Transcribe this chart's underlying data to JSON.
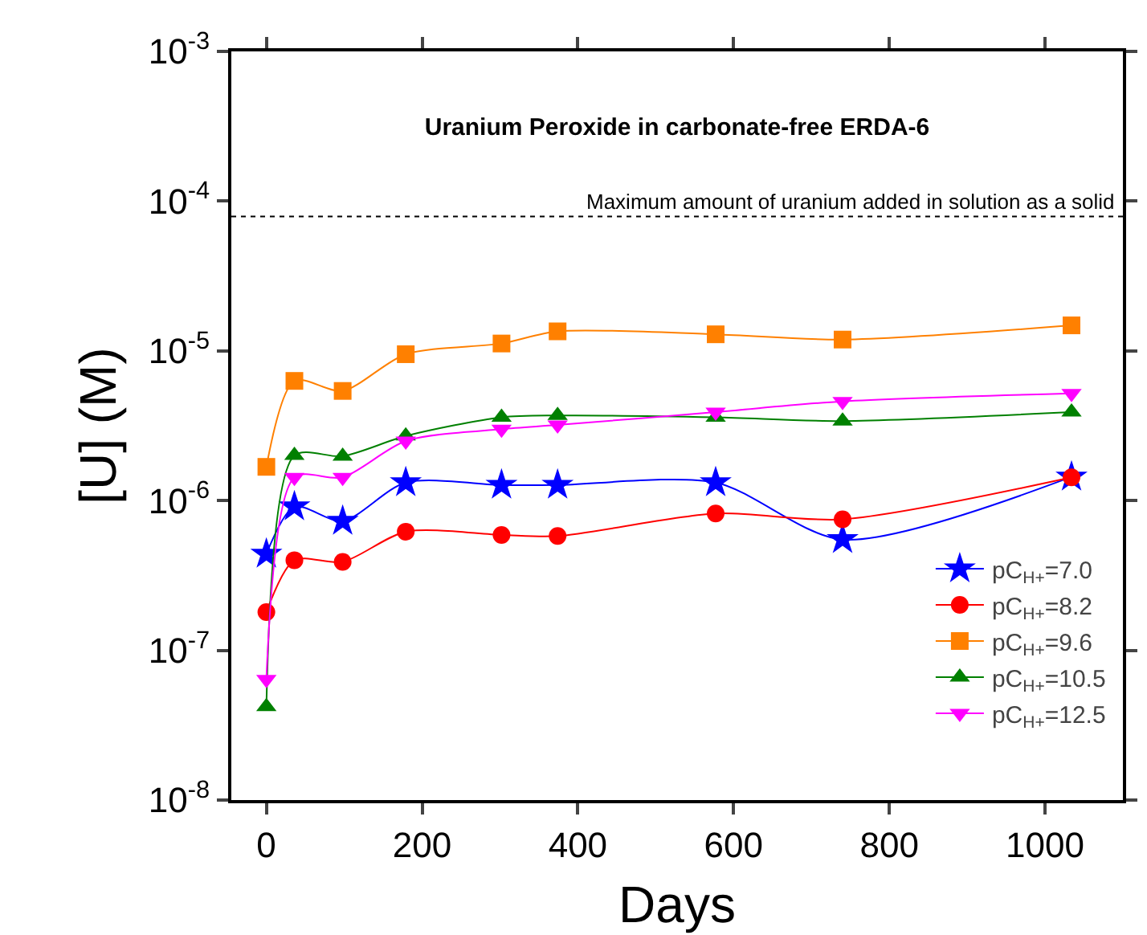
{
  "chart_data": {
    "type": "line",
    "title": "Uranium Peroxide in carbonate-free ERDA-6",
    "xlabel": "Days",
    "ylabel": "[U] (M)",
    "log": "y",
    "xlim": [
      -45,
      1100
    ],
    "xticks": [
      0,
      200,
      400,
      600,
      800,
      1000
    ],
    "ylim": [
      1e-08,
      0.001
    ],
    "yticks": [
      {
        "value": 1e-08,
        "label": "10$^{-8}$"
      },
      {
        "value": 1e-07,
        "label": "10$^{-7}$"
      },
      {
        "value": 1e-06,
        "label": "10$^{-6}$"
      },
      {
        "value": 1e-05,
        "label": "10$^{-5}$"
      },
      {
        "value": 0.0001,
        "label": "10$^{-4}$"
      },
      {
        "value": 0.001,
        "label": "10$^{-3}$"
      }
    ],
    "grid": false,
    "legend": "bottom right",
    "line_style": "solid",
    "x": [
      0,
      36,
      98,
      179,
      302,
      374,
      577,
      740,
      1034
    ],
    "series": [
      {
        "name": "pC$_{H+}$=7.0",
        "color": "#0000ff",
        "marker": "star",
        "values": [
          4.4e-07,
          9.1e-07,
          7.3e-07,
          1.32e-06,
          1.27e-06,
          1.27e-06,
          1.32e-06,
          5.5e-07,
          1.44e-06
        ]
      },
      {
        "name": "pC$_{H+}$=8.2",
        "color": "#ff0000",
        "marker": "circle",
        "values": [
          1.8e-07,
          4e-07,
          3.9e-07,
          6.2e-07,
          5.9e-07,
          5.8e-07,
          8.2e-07,
          7.5e-07,
          1.43e-06
        ]
      },
      {
        "name": "pC$_{H+}$=9.6",
        "color": "#ff8000",
        "marker": "square",
        "values": [
          1.68e-06,
          6.3e-06,
          5.4e-06,
          9.5e-06,
          1.12e-05,
          1.35e-05,
          1.29e-05,
          1.19e-05,
          1.48e-05
        ]
      },
      {
        "name": "pC$_{H+}$=10.5",
        "color": "#008000",
        "marker": "triangle",
        "values": [
          4.2e-08,
          2e-06,
          1.98e-06,
          2.7e-06,
          3.6e-06,
          3.7e-06,
          3.6e-06,
          3.4e-06,
          3.9e-06
        ]
      },
      {
        "name": "pC$_{H+}$=12.5",
        "color": "#ff00ff",
        "marker": "triangle-down",
        "values": [
          6.4e-08,
          1.43e-06,
          1.43e-06,
          2.5e-06,
          3e-06,
          3.2e-06,
          3.9e-06,
          4.6e-06,
          5.2e-06
        ]
      }
    ],
    "ref_lines": [
      {
        "axis": "y",
        "value": 7.9e-05,
        "label": "Maximum amount of uranium added in solution as a solid",
        "line_style": "dotted",
        "color": "#000000"
      }
    ]
  }
}
